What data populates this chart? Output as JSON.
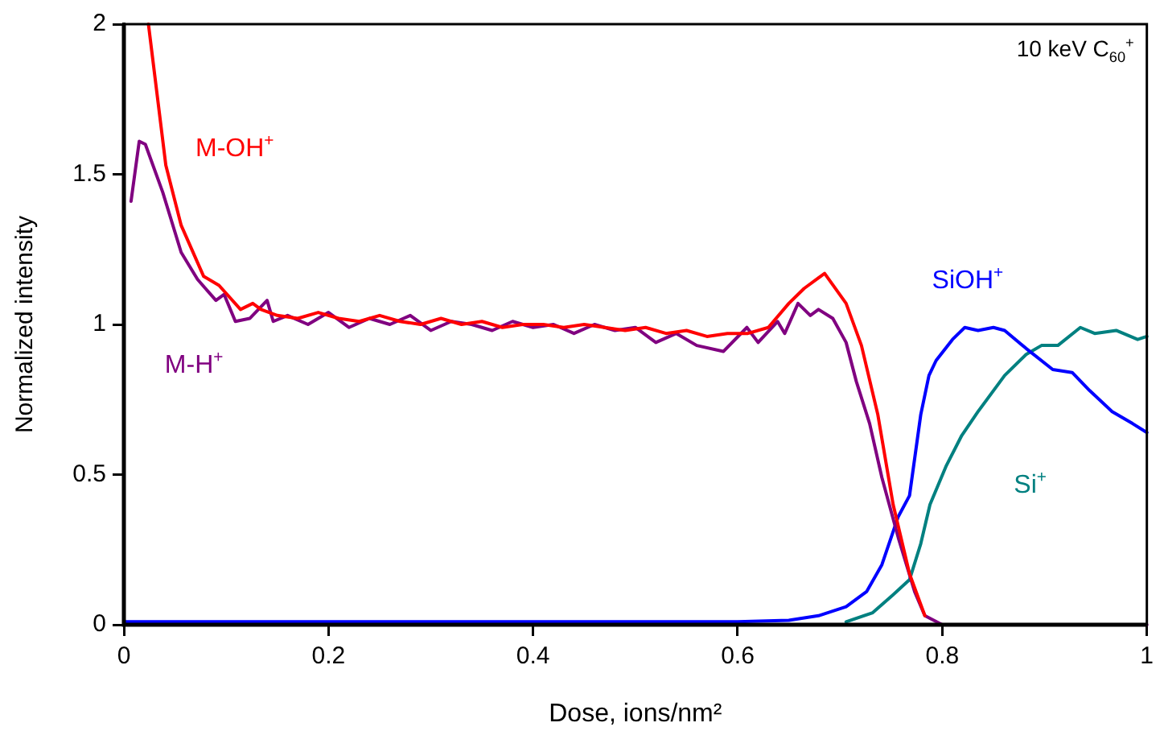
{
  "chart_data": {
    "type": "line",
    "xlabel": "Dose, ions/nm²",
    "ylabel": "Normalized intensity",
    "annotations": [
      "10 keV C$_{60}$$^{+}$"
    ],
    "xlim": [
      0,
      1
    ],
    "xticks": [
      0,
      0.2,
      0.4,
      0.6,
      0.8,
      1
    ],
    "ylim": [
      0,
      2
    ],
    "yticks": [
      0,
      0.5,
      1,
      1.5,
      2
    ],
    "grid": false,
    "legend": false,
    "marker": "none",
    "line_style": "solid",
    "series": [
      {
        "name": "M-OH$^{+}$",
        "color": "#ff0000",
        "x": [
          0.024,
          0.041,
          0.056,
          0.078,
          0.093,
          0.114,
          0.126,
          0.134,
          0.15,
          0.17,
          0.19,
          0.21,
          0.23,
          0.25,
          0.27,
          0.29,
          0.31,
          0.33,
          0.35,
          0.37,
          0.39,
          0.41,
          0.43,
          0.45,
          0.47,
          0.49,
          0.51,
          0.53,
          0.55,
          0.57,
          0.59,
          0.61,
          0.63,
          0.65,
          0.665,
          0.685,
          0.706,
          0.721,
          0.737,
          0.752,
          0.768,
          0.783
        ],
        "values": [
          2,
          1.53,
          1.33,
          1.16,
          1.13,
          1.05,
          1.07,
          1.05,
          1.03,
          1.02,
          1.04,
          1.02,
          1.01,
          1.03,
          1.01,
          1.0,
          1.02,
          1.0,
          1.01,
          0.99,
          1.0,
          1.0,
          0.99,
          1.0,
          0.99,
          0.98,
          0.99,
          0.97,
          0.98,
          0.96,
          0.97,
          0.97,
          0.99,
          1.07,
          1.12,
          1.17,
          1.07,
          0.93,
          0.7,
          0.4,
          0.17,
          0.03
        ]
      },
      {
        "name": "M-H$^{+}$",
        "color": "#800080",
        "x": [
          0.007,
          0.015,
          0.021,
          0.038,
          0.056,
          0.072,
          0.09,
          0.098,
          0.109,
          0.123,
          0.14,
          0.146,
          0.16,
          0.18,
          0.2,
          0.22,
          0.24,
          0.26,
          0.28,
          0.3,
          0.32,
          0.34,
          0.36,
          0.38,
          0.4,
          0.42,
          0.44,
          0.46,
          0.48,
          0.5,
          0.52,
          0.54,
          0.56,
          0.586,
          0.609,
          0.62,
          0.639,
          0.646,
          0.659,
          0.671,
          0.679,
          0.693,
          0.706,
          0.716,
          0.729,
          0.741,
          0.757,
          0.773,
          0.783,
          0.8,
          0.9,
          1.0
        ],
        "values": [
          1.41,
          1.61,
          1.6,
          1.44,
          1.24,
          1.15,
          1.08,
          1.1,
          1.01,
          1.02,
          1.08,
          1.01,
          1.03,
          1.0,
          1.04,
          0.99,
          1.02,
          1.0,
          1.03,
          0.98,
          1.01,
          1.0,
          0.98,
          1.01,
          0.99,
          1.0,
          0.97,
          1.0,
          0.98,
          0.99,
          0.94,
          0.97,
          0.93,
          0.91,
          0.99,
          0.94,
          1.01,
          0.97,
          1.07,
          1.03,
          1.05,
          1.02,
          0.94,
          0.81,
          0.67,
          0.49,
          0.29,
          0.11,
          0.03,
          0,
          0,
          0
        ]
      },
      {
        "name": "SiOH$^{+}$",
        "color": "#0000ff",
        "x": [
          0,
          0.2,
          0.4,
          0.6,
          0.65,
          0.679,
          0.706,
          0.726,
          0.741,
          0.757,
          0.768,
          0.779,
          0.787,
          0.794,
          0.81,
          0.822,
          0.835,
          0.85,
          0.861,
          0.882,
          0.908,
          0.927,
          0.944,
          0.966,
          0.986,
          1.0
        ],
        "values": [
          0.01,
          0.01,
          0.01,
          0.01,
          0.015,
          0.03,
          0.06,
          0.11,
          0.2,
          0.36,
          0.43,
          0.7,
          0.83,
          0.88,
          0.95,
          0.99,
          0.98,
          0.99,
          0.98,
          0.92,
          0.85,
          0.84,
          0.78,
          0.71,
          0.67,
          0.64
        ]
      },
      {
        "name": "Si$^{+}$",
        "color": "#008080",
        "x": [
          0.706,
          0.732,
          0.752,
          0.768,
          0.779,
          0.788,
          0.804,
          0.819,
          0.835,
          0.861,
          0.882,
          0.897,
          0.913,
          0.935,
          0.949,
          0.97,
          0.991,
          1.0
        ],
        "values": [
          0.01,
          0.04,
          0.1,
          0.15,
          0.27,
          0.4,
          0.53,
          0.63,
          0.71,
          0.83,
          0.9,
          0.93,
          0.93,
          0.99,
          0.97,
          0.98,
          0.95,
          0.96
        ]
      }
    ]
  }
}
